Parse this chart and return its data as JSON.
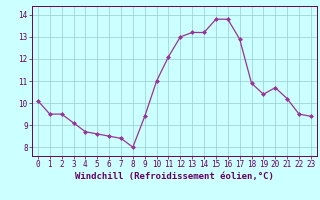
{
  "x": [
    0,
    1,
    2,
    3,
    4,
    5,
    6,
    7,
    8,
    9,
    10,
    11,
    12,
    13,
    14,
    15,
    16,
    17,
    18,
    19,
    20,
    21,
    22,
    23
  ],
  "y": [
    10.1,
    9.5,
    9.5,
    9.1,
    8.7,
    8.6,
    8.5,
    8.4,
    8.0,
    9.4,
    11.0,
    12.1,
    13.0,
    13.2,
    13.2,
    13.8,
    13.8,
    12.9,
    10.9,
    10.4,
    10.7,
    10.2,
    9.5,
    9.4
  ],
  "line_color": "#993399",
  "marker": "D",
  "marker_size": 2,
  "bg_color": "#ccffff",
  "grid_color": "#99cccc",
  "xlabel": "Windchill (Refroidissement éolien,°C)",
  "xlim": [
    -0.5,
    23.5
  ],
  "ylim": [
    7.6,
    14.4
  ],
  "yticks": [
    8,
    9,
    10,
    11,
    12,
    13,
    14
  ],
  "xticks": [
    0,
    1,
    2,
    3,
    4,
    5,
    6,
    7,
    8,
    9,
    10,
    11,
    12,
    13,
    14,
    15,
    16,
    17,
    18,
    19,
    20,
    21,
    22,
    23
  ],
  "tick_color": "#660066",
  "label_color": "#660066",
  "axis_fontsize": 5.5,
  "xlabel_fontsize": 6.5,
  "linewidth": 0.9
}
